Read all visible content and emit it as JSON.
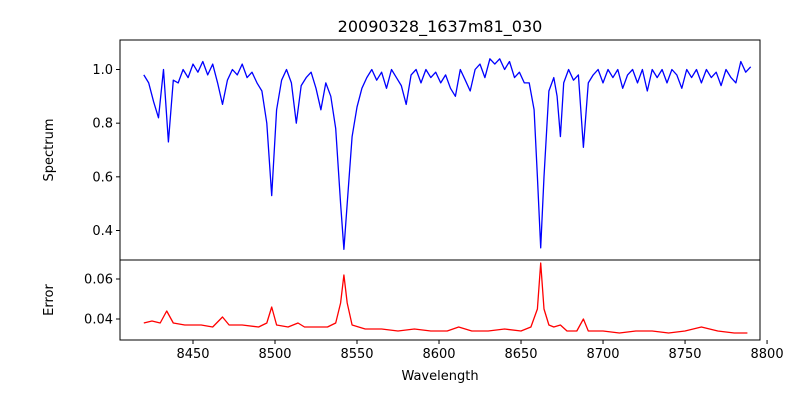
{
  "chart_data": [
    {
      "type": "line",
      "title": "20090328_1637m81_030",
      "xlabel": "",
      "ylabel": "Spectrum",
      "xlim": [
        8405.5,
        8795.7
      ],
      "ylim": [
        0.29,
        1.11
      ],
      "yticks": [
        "0.4",
        "0.6",
        "0.8",
        "1.0"
      ],
      "ytick_values": [
        0.4,
        0.6,
        0.8,
        1.0
      ],
      "color": "#0000ff",
      "x": [
        8420,
        8423,
        8426,
        8429,
        8432,
        8435,
        8438,
        8441,
        8444,
        8447,
        8450,
        8453,
        8456,
        8459,
        8462,
        8465,
        8468,
        8471,
        8474,
        8477,
        8480,
        8483,
        8486,
        8489,
        8492,
        8495,
        8498,
        8501,
        8504,
        8507,
        8510,
        8513,
        8516,
        8519,
        8522,
        8525,
        8528,
        8531,
        8534,
        8537,
        8540,
        8542,
        8544,
        8547,
        8550,
        8553,
        8556,
        8559,
        8562,
        8565,
        8568,
        8571,
        8574,
        8577,
        8580,
        8583,
        8586,
        8589,
        8592,
        8595,
        8598,
        8601,
        8604,
        8607,
        8610,
        8613,
        8616,
        8619,
        8622,
        8625,
        8628,
        8631,
        8634,
        8637,
        8640,
        8643,
        8646,
        8649,
        8652,
        8655,
        8658,
        8660,
        8662,
        8664,
        8667,
        8670,
        8672,
        8674,
        8676,
        8679,
        8682,
        8685,
        8688,
        8691,
        8694,
        8697,
        8700,
        8703,
        8706,
        8709,
        8712,
        8715,
        8718,
        8721,
        8724,
        8727,
        8730,
        8733,
        8736,
        8739,
        8742,
        8745,
        8748,
        8751,
        8754,
        8757,
        8760,
        8763,
        8766,
        8769,
        8772,
        8775,
        8778,
        8781,
        8784,
        8787,
        8790
      ],
      "y": [
        0.98,
        0.95,
        0.88,
        0.82,
        1.0,
        0.73,
        0.96,
        0.95,
        1.0,
        0.97,
        1.02,
        0.99,
        1.03,
        0.98,
        1.02,
        0.95,
        0.87,
        0.96,
        1.0,
        0.98,
        1.02,
        0.97,
        0.99,
        0.95,
        0.92,
        0.8,
        0.53,
        0.85,
        0.96,
        1.0,
        0.95,
        0.8,
        0.94,
        0.97,
        0.99,
        0.93,
        0.85,
        0.95,
        0.9,
        0.78,
        0.5,
        0.33,
        0.5,
        0.75,
        0.86,
        0.93,
        0.97,
        1.0,
        0.96,
        0.99,
        0.93,
        1.0,
        0.97,
        0.94,
        0.87,
        0.98,
        1.0,
        0.95,
        1.0,
        0.97,
        0.99,
        0.95,
        0.98,
        0.93,
        0.9,
        1.0,
        0.96,
        0.92,
        1.0,
        1.02,
        0.97,
        1.04,
        1.02,
        1.04,
        1.0,
        1.03,
        0.97,
        0.99,
        0.95,
        0.95,
        0.85,
        0.6,
        0.335,
        0.6,
        0.92,
        0.97,
        0.9,
        0.75,
        0.95,
        1.0,
        0.96,
        0.98,
        0.71,
        0.95,
        0.98,
        1.0,
        0.95,
        1.0,
        0.97,
        1.0,
        0.93,
        0.98,
        1.0,
        0.95,
        1.0,
        0.92,
        1.0,
        0.97,
        1.0,
        0.95,
        1.0,
        0.98,
        0.93,
        1.0,
        0.97,
        1.0,
        0.95,
        1.0,
        0.97,
        0.99,
        0.94,
        1.0,
        0.97,
        0.95,
        1.03,
        0.99,
        1.01
      ]
    },
    {
      "type": "line",
      "title": "",
      "xlabel": "Wavelength",
      "ylabel": "Error",
      "xlim": [
        8405.5,
        8795.7
      ],
      "ylim": [
        0.0295,
        0.0695
      ],
      "xticks": [
        "8450",
        "8500",
        "8550",
        "8600",
        "8650",
        "8700",
        "8750",
        "8800"
      ],
      "xtick_values": [
        8450,
        8500,
        8550,
        8600,
        8650,
        8700,
        8750,
        8800
      ],
      "yticks": [
        "0.04",
        "0.06"
      ],
      "ytick_values": [
        0.04,
        0.06
      ],
      "color": "#ff0000",
      "x": [
        8420,
        8425,
        8430,
        8434,
        8438,
        8445,
        8455,
        8462,
        8468,
        8472,
        8480,
        8490,
        8495,
        8498,
        8501,
        8508,
        8514,
        8518,
        8525,
        8532,
        8537,
        8540,
        8542,
        8544,
        8547,
        8555,
        8565,
        8575,
        8585,
        8595,
        8605,
        8612,
        8620,
        8630,
        8640,
        8650,
        8656,
        8660,
        8662,
        8664,
        8667,
        8670,
        8674,
        8678,
        8684,
        8688,
        8691,
        8700,
        8710,
        8720,
        8730,
        8740,
        8750,
        8760,
        8770,
        8780,
        8788
      ],
      "y": [
        0.038,
        0.039,
        0.038,
        0.044,
        0.038,
        0.037,
        0.037,
        0.036,
        0.041,
        0.037,
        0.037,
        0.036,
        0.038,
        0.046,
        0.037,
        0.036,
        0.038,
        0.036,
        0.036,
        0.036,
        0.038,
        0.048,
        0.062,
        0.048,
        0.037,
        0.035,
        0.035,
        0.034,
        0.035,
        0.034,
        0.034,
        0.036,
        0.034,
        0.034,
        0.035,
        0.034,
        0.036,
        0.045,
        0.068,
        0.045,
        0.037,
        0.036,
        0.037,
        0.034,
        0.034,
        0.04,
        0.034,
        0.034,
        0.033,
        0.034,
        0.034,
        0.033,
        0.034,
        0.036,
        0.034,
        0.033,
        0.033
      ]
    }
  ]
}
